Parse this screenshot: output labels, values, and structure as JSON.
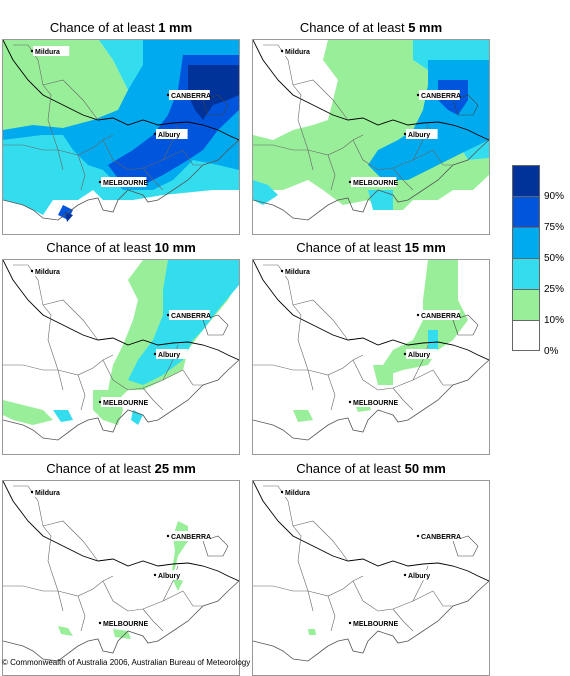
{
  "panels": [
    {
      "prefix": "Chance of at least ",
      "amount": "1 mm",
      "cells": [
        [
          0,
          10,
          4
        ],
        [
          0,
          10,
          4
        ],
        [
          0,
          40,
          4
        ],
        [
          0,
          70,
          4
        ],
        [
          0,
          100,
          3
        ],
        [
          0,
          130,
          2
        ],
        [
          0,
          160,
          1
        ],
        [
          0,
          190,
          1
        ],
        [
          0,
          20,
          3
        ],
        [
          0,
          60,
          4
        ],
        [
          0,
          120,
          3
        ],
        [
          0,
          150,
          2
        ],
        [
          0,
          170,
          1
        ],
        [
          0,
          200,
          1
        ],
        [
          0,
          210,
          2
        ]
      ]
    },
    {
      "prefix": "Chance of at least ",
      "amount": "5 mm",
      "cells": [
        [
          0,
          30,
          3
        ],
        [
          0,
          60,
          3
        ],
        [
          0,
          110,
          2
        ],
        [
          0,
          150,
          2
        ],
        [
          0,
          170,
          1
        ],
        [
          0,
          200,
          1
        ]
      ]
    },
    {
      "prefix": "Chance of at least ",
      "amount": "10 mm",
      "cells": []
    },
    {
      "prefix": "Chance of at least ",
      "amount": "15 mm",
      "cells": []
    },
    {
      "prefix": "Chance of at least ",
      "amount": "25 mm",
      "cells": []
    },
    {
      "prefix": "Chance of at least ",
      "amount": "50 mm",
      "cells": []
    }
  ],
  "cities": {
    "mildura": "Mildura",
    "canberra": "CANBERRA",
    "albury": "Albury",
    "melbourne": "MELBOURNE"
  },
  "legend": {
    "colors": [
      "#003399",
      "#0055dd",
      "#00aaee",
      "#33ddee",
      "#99ee99",
      "#ffffff"
    ],
    "labels": [
      "90%",
      "75%",
      "50%",
      "25%",
      "10%",
      "0%"
    ]
  },
  "copyright": "© Commonwealth of Australia 2006, Australian Bureau of Meteorology"
}
